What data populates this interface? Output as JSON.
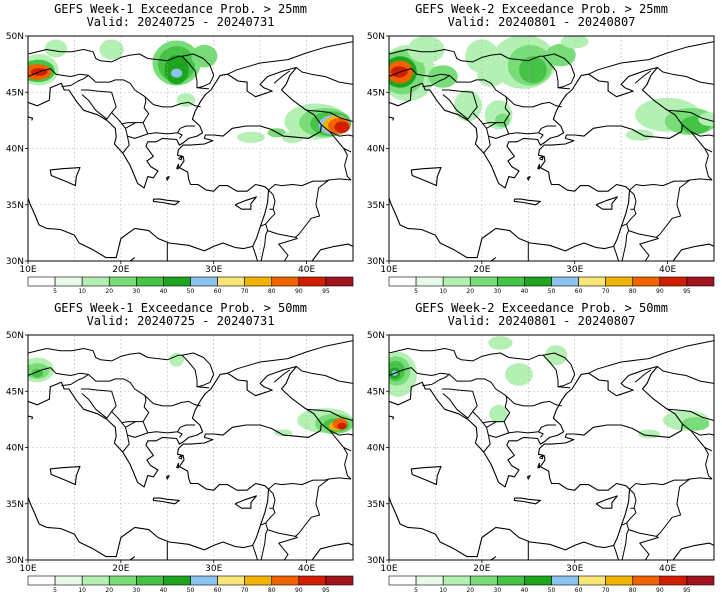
{
  "colorbar": {
    "colors": [
      "#ffffff",
      "#e8fae8",
      "#b4f0b4",
      "#78dc78",
      "#46c346",
      "#1ea51e",
      "#8cc3f0",
      "#fae678",
      "#f0b400",
      "#f06400",
      "#d21e00",
      "#a0141e"
    ],
    "labels": [
      "5",
      "10",
      "20",
      "30",
      "40",
      "50",
      "60",
      "70",
      "80",
      "90",
      "95"
    ]
  },
  "axes": {
    "lat_labels": [
      "50N",
      "45N",
      "40N",
      "35N",
      "30N"
    ],
    "lon_labels": [
      "10E",
      "20E",
      "30E",
      "40E"
    ]
  },
  "panels": [
    {
      "title": "GEFS Week-1 Exceedance Prob. > 25mm",
      "valid": "Valid: 20240725 - 20240731"
    },
    {
      "title": "GEFS Week-2 Exceedance Prob. > 25mm",
      "valid": "Valid: 20240801 - 20240807"
    },
    {
      "title": "GEFS Week-1 Exceedance Prob. > 50mm",
      "valid": "Valid: 20240725 - 20240731"
    },
    {
      "title": "GEFS Week-2 Exceedance Prob. > 50mm",
      "valid": "Valid: 20240801 - 20240807"
    }
  ]
}
